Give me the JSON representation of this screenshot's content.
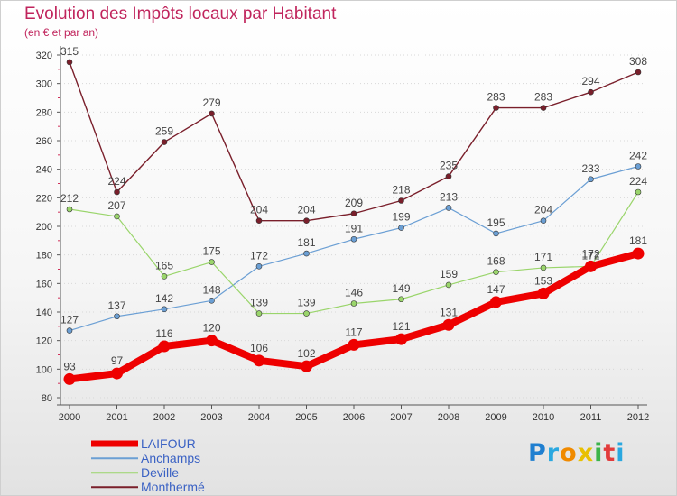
{
  "chart_data": {
    "type": "line",
    "title": "Evolution des Impôts locaux par Habitant",
    "subtitle": "(en € et par an)",
    "categories": [
      "2000",
      "2001",
      "2002",
      "2003",
      "2004",
      "2005",
      "2006",
      "2007",
      "2008",
      "2009",
      "2010",
      "2011",
      "2012"
    ],
    "ylim": [
      80,
      320
    ],
    "yticks": [
      "80",
      "100",
      "120",
      "140",
      "160",
      "180",
      "200",
      "220",
      "240",
      "260",
      "280",
      "300",
      "320"
    ],
    "grid": "horizontal dashed",
    "legend_position": "bottom-left",
    "series": [
      {
        "name": "Monthermé",
        "color": "#7a1f2b",
        "values": [
          315,
          224,
          259,
          279,
          204,
          204,
          209,
          218,
          235,
          283,
          283,
          294,
          308
        ]
      },
      {
        "name": "Anchamps",
        "color": "#6b9fd4",
        "values": [
          127,
          137,
          142,
          148,
          172,
          181,
          191,
          199,
          213,
          195,
          204,
          233,
          242
        ]
      },
      {
        "name": "Deville",
        "color": "#9ad56b",
        "values": [
          212,
          207,
          165,
          175,
          139,
          139,
          146,
          149,
          159,
          168,
          171,
          172,
          224
        ]
      },
      {
        "name": "LAIFOUR",
        "color": "#ee0000",
        "values": [
          93,
          97,
          116,
          120,
          106,
          102,
          117,
          121,
          131,
          147,
          153,
          172,
          181
        ]
      }
    ]
  },
  "legend": {
    "items": [
      {
        "label": "LAIFOUR",
        "color": "#ee0000"
      },
      {
        "label": "Anchamps",
        "color": "#6b9fd4"
      },
      {
        "label": "Deville",
        "color": "#9ad56b"
      },
      {
        "label": "Monthermé",
        "color": "#7a1f2b"
      }
    ]
  },
  "logo": {
    "letters": [
      {
        "char": "P",
        "color": "#1f7fd0"
      },
      {
        "char": "r",
        "color": "#2aa8e0"
      },
      {
        "char": "o",
        "color": "#f08a00"
      },
      {
        "char": "x",
        "color": "#e8c000"
      },
      {
        "char": "i",
        "color": "#3cb44b"
      },
      {
        "char": "t",
        "color": "#e23b3b"
      },
      {
        "char": "i",
        "color": "#2aa8e0"
      }
    ]
  }
}
